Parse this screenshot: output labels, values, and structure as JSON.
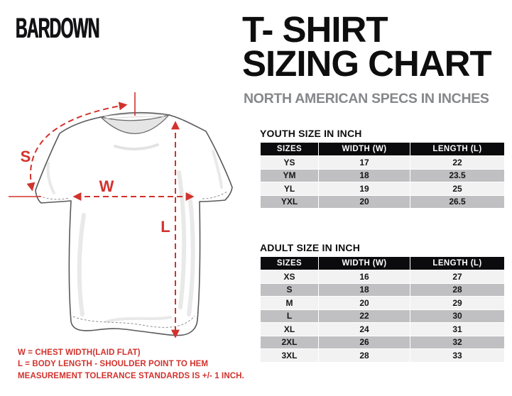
{
  "logo": {
    "text": "BARDOWN"
  },
  "header": {
    "title_line1": "T- SHIRT",
    "title_line2": "SIZING CHART",
    "subtitle": "NORTH AMERICAN SPECS IN INCHES"
  },
  "diagram": {
    "s_label": "S",
    "w_label": "W",
    "l_label": "L"
  },
  "youth_table": {
    "title": "YOUTH SIZE IN INCH",
    "headers": [
      "SIZES",
      "WIDTH (W)",
      "LENGTH (L)"
    ],
    "rows": [
      [
        "YS",
        "17",
        "22"
      ],
      [
        "YM",
        "18",
        "23.5"
      ],
      [
        "YL",
        "19",
        "25"
      ],
      [
        "YXL",
        "20",
        "26.5"
      ]
    ]
  },
  "adult_table": {
    "title": "ADULT SIZE IN INCH",
    "headers": [
      "SIZES",
      "WIDTH (W)",
      "LENGTH (L)"
    ],
    "rows": [
      [
        "XS",
        "16",
        "27"
      ],
      [
        "S",
        "18",
        "28"
      ],
      [
        "M",
        "20",
        "29"
      ],
      [
        "L",
        "22",
        "30"
      ],
      [
        "XL",
        "24",
        "31"
      ],
      [
        "2XL",
        "26",
        "32"
      ],
      [
        "3XL",
        "28",
        "33"
      ]
    ]
  },
  "notes": {
    "line1": "W = CHEST WIDTH(LAID FLAT)",
    "line2": "L = BODY LENGTH - SHOULDER POINT TO HEM",
    "line3": "MEASUREMENT TOLERANCE STANDARDS IS +/- 1 INCH."
  },
  "colors": {
    "accent_red": "#d2322d",
    "subtitle_gray": "#85878a",
    "table_header_bg": "#0b0b0d",
    "row_light": "#f2f2f3",
    "row_dark": "#c0c0c2"
  }
}
